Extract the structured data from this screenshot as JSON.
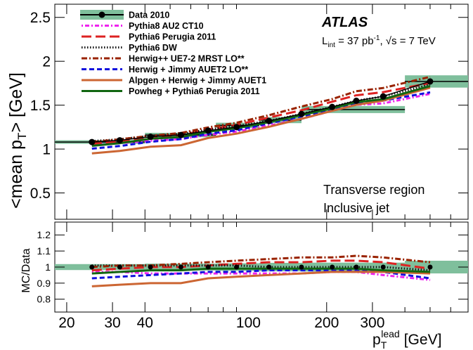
{
  "chart_data": {
    "type": "line",
    "x_scale": "log",
    "xlim": [
      18,
      700
    ],
    "xlabel_main": "p",
    "xlabel_sub": "T",
    "xlabel_sup": "lead",
    "xlabel_unit": "[GeV]",
    "xticks": [
      20,
      30,
      40,
      100,
      200,
      300
    ],
    "top": {
      "ylim": [
        0.2,
        2.65
      ],
      "ylabel": "<mean p_T> [GeV]",
      "ylabel_main": "<mean p",
      "ylabel_sub": "T",
      "ylabel_tail": "> [GeV]",
      "yticks": [
        "0.5",
        "1",
        "1.5",
        "2",
        "2.5"
      ]
    },
    "ratio": {
      "ylim": [
        0.72,
        1.28
      ],
      "ylabel": "MC/Data",
      "yticks": [
        "0.8",
        "0.9",
        "1",
        "1.1",
        "1.2"
      ]
    },
    "atlas_label": "ATLAS",
    "lumi_text": "L_int = 37 pb^-1, √s = 7 TeV",
    "lumi": {
      "L": "L",
      "int": "int",
      "eq": " = 37 pb",
      "exp": "-1",
      "rest": ",  √s = 7 TeV"
    },
    "region_line1": "Transverse region",
    "region_line2": "Inclusive jet",
    "data": {
      "name": "Data 2010",
      "x": [
        25,
        32,
        42,
        55,
        70,
        90,
        120,
        160,
        210,
        260,
        330,
        500
      ],
      "y": [
        1.08,
        1.1,
        1.14,
        1.16,
        1.21,
        1.25,
        1.32,
        1.4,
        1.48,
        1.55,
        1.6,
        1.77
      ],
      "band_edges": [
        18,
        40,
        75,
        110,
        160,
        400,
        700
      ],
      "band_values": [
        1.08,
        1.16,
        1.27,
        1.33,
        1.45,
        1.77
      ],
      "band_err": [
        0.02,
        0.025,
        0.03,
        0.035,
        0.04,
        0.07
      ]
    },
    "series": [
      {
        "name": "Pythia8 AU2 CT10",
        "color": "#ee22ee",
        "dash": "2,3,6,3",
        "ratio": [
          0.97,
          0.97,
          0.96,
          0.96,
          0.96,
          0.96,
          0.96,
          0.96,
          0.97,
          0.97,
          0.95,
          0.92
        ]
      },
      {
        "name": "Pythia6 Perugia 2011",
        "color": "#dd2222",
        "dash": "14,6",
        "ratio": [
          0.98,
          0.99,
          1.0,
          1.0,
          1.01,
          1.02,
          1.03,
          1.03,
          1.04,
          1.04,
          1.03,
          0.99
        ]
      },
      {
        "name": "Pythia6 DW",
        "color": "#111111",
        "dash": "1.5,2.5",
        "ratio": [
          1.01,
          1.01,
          1.01,
          1.01,
          1.01,
          1.01,
          1.0,
          1.0,
          1.0,
          1.0,
          1.0,
          0.98
        ]
      },
      {
        "name": "Herwig++ UE7-2 MRST LO**",
        "color": "#992200",
        "dash": "8,3,2,3",
        "ratio": [
          1.0,
          1.01,
          1.01,
          1.02,
          1.03,
          1.04,
          1.05,
          1.06,
          1.06,
          1.07,
          1.06,
          1.03
        ]
      },
      {
        "name": "Herwig + Jimmy AUET2 LO**",
        "color": "#1111dd",
        "dash": "7,4",
        "ratio": [
          0.93,
          0.94,
          0.95,
          0.96,
          0.97,
          0.97,
          0.98,
          0.98,
          0.98,
          0.98,
          0.97,
          0.93
        ]
      },
      {
        "name": "Alpgen + Herwig + Jimmy AUET1",
        "color": "#cc6633",
        "dash": "",
        "ratio": [
          0.88,
          0.89,
          0.9,
          0.9,
          0.93,
          0.94,
          0.95,
          0.96,
          0.97,
          0.97,
          0.97,
          0.96
        ]
      },
      {
        "name": "Powheg + Pythia6 Perugia 2011",
        "color": "#116611",
        "dash": "",
        "ratio": [
          0.96,
          0.97,
          0.98,
          0.98,
          0.99,
          0.99,
          0.99,
          0.99,
          0.99,
          0.99,
          0.98,
          0.97
        ]
      }
    ]
  }
}
